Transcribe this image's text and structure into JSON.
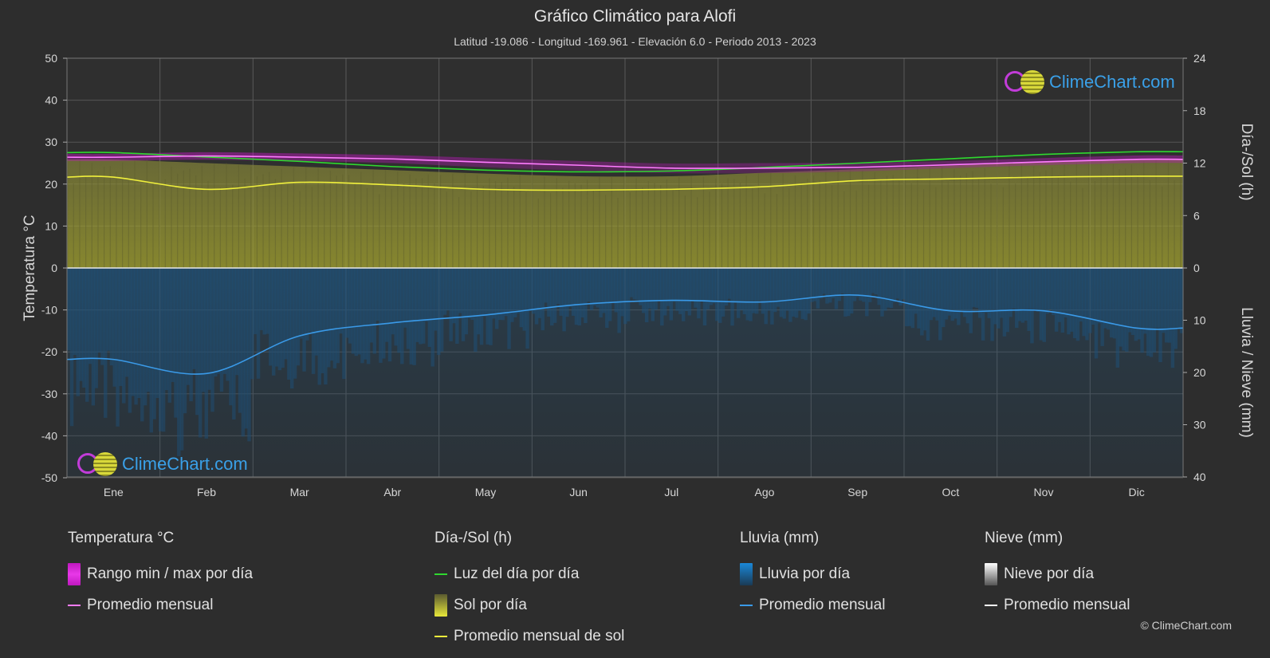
{
  "title": "Gráfico Climático para Alofi",
  "subtitle": "Latitud -19.086 - Longitud -169.961 - Elevación 6.0 - Periodo 2013 - 2023",
  "logo_text": "ClimeChart.com",
  "copyright": "© ClimeChart.com",
  "colors": {
    "background": "#2d2d2d",
    "temp_range": "#e010e0",
    "temp_mean": "#ff7cff",
    "daylight": "#2fd82f",
    "sunshine": "#c7c73a",
    "sunshine_mean": "#f0f03c",
    "rain": "#1a88d8",
    "rain_mean": "#3a9ae8",
    "snow": "#ffffff"
  },
  "legend": {
    "temp": {
      "title": "Temperatura °C",
      "range_label": "Rango min / max por día",
      "mean_label": "Promedio mensual"
    },
    "sun": {
      "title": "Día-/Sol (h)",
      "daylight_label": "Luz del día por día",
      "sunshine_label": "Sol por día",
      "sunshine_mean_label": "Promedio mensual de sol"
    },
    "rain": {
      "title": "Lluvia (mm)",
      "daily_label": "Lluvia por día",
      "mean_label": "Promedio mensual"
    },
    "snow": {
      "title": "Nieve (mm)",
      "daily_label": "Nieve por día",
      "mean_label": "Promedio mensual"
    }
  },
  "chart_data": {
    "type": "line",
    "categories": [
      "Ene",
      "Feb",
      "Mar",
      "Abr",
      "May",
      "Jun",
      "Jul",
      "Ago",
      "Sep",
      "Oct",
      "Nov",
      "Dic"
    ],
    "left_axis": {
      "label": "Temperatura °C",
      "ylim": [
        -50,
        50
      ],
      "ticks": [
        50,
        40,
        30,
        20,
        10,
        0,
        -10,
        -20,
        -30,
        -40,
        -50
      ]
    },
    "right_axis_top": {
      "label": "Día-/Sol (h)",
      "ylim": [
        0,
        24
      ],
      "ticks": [
        24,
        18,
        12,
        6,
        0
      ]
    },
    "right_axis_bottom": {
      "label": "Lluvia / Nieve (mm)",
      "ylim": [
        0,
        40
      ],
      "ticks": [
        0,
        10,
        20,
        30,
        40
      ]
    },
    "grid": true,
    "series": [
      {
        "name": "Rango min / max por día",
        "kind": "band",
        "axis": "temp",
        "min": [
          25.5,
          25.8,
          25.5,
          25.0,
          24.0,
          23.2,
          22.6,
          22.6,
          23.0,
          23.8,
          24.5,
          25.0
        ],
        "max": [
          27.2,
          27.6,
          27.3,
          26.9,
          26.2,
          25.5,
          24.9,
          25.0,
          25.1,
          25.5,
          26.2,
          26.8
        ]
      },
      {
        "name": "Promedio mensual",
        "kind": "line",
        "axis": "temp",
        "values": [
          26.4,
          26.7,
          26.4,
          26.0,
          25.2,
          24.5,
          23.8,
          23.8,
          24.0,
          24.6,
          25.3,
          25.9
        ]
      },
      {
        "name": "Luz del día por día",
        "kind": "line",
        "axis": "hours",
        "values": [
          13.2,
          12.7,
          12.2,
          11.6,
          11.2,
          11.0,
          11.1,
          11.5,
          12.0,
          12.5,
          13.0,
          13.3
        ]
      },
      {
        "name": "Sol por día",
        "kind": "area",
        "axis": "hours",
        "values": [
          12.4,
          12.0,
          11.6,
          11.2,
          10.8,
          10.5,
          10.5,
          10.9,
          11.3,
          11.7,
          12.1,
          12.4
        ]
      },
      {
        "name": "Promedio mensual de sol",
        "kind": "line",
        "axis": "hours",
        "values": [
          10.4,
          9.0,
          9.8,
          9.5,
          9.0,
          8.9,
          9.0,
          9.3,
          10.0,
          10.2,
          10.4,
          10.5
        ]
      },
      {
        "name": "Promedio mensual",
        "kind": "line",
        "axis": "rain",
        "values": [
          17.5,
          20.2,
          13.0,
          10.5,
          9.0,
          7.0,
          6.2,
          6.5,
          5.2,
          8.2,
          8.2,
          11.5
        ]
      }
    ]
  }
}
